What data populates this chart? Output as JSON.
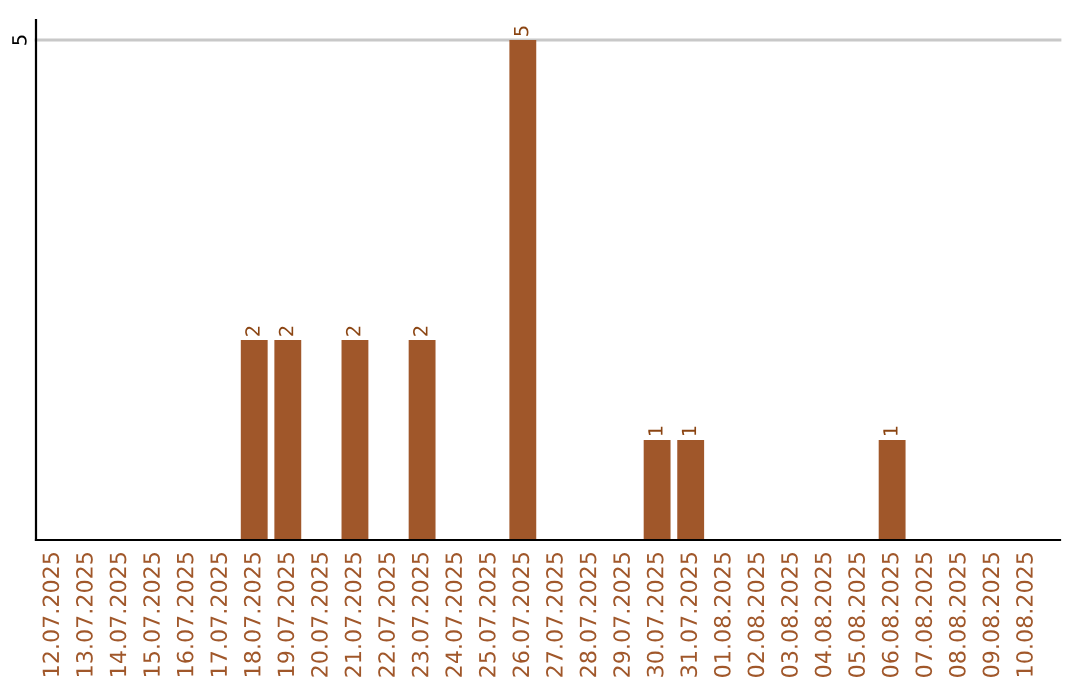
{
  "chart_data": {
    "type": "bar",
    "categories": [
      "12.07.2025",
      "13.07.2025",
      "14.07.2025",
      "15.07.2025",
      "16.07.2025",
      "17.07.2025",
      "18.07.2025",
      "19.07.2025",
      "20.07.2025",
      "21.07.2025",
      "22.07.2025",
      "23.07.2025",
      "24.07.2025",
      "25.07.2025",
      "26.07.2025",
      "27.07.2025",
      "28.07.2025",
      "29.07.2025",
      "30.07.2025",
      "31.07.2025",
      "01.08.2025",
      "02.08.2025",
      "03.08.2025",
      "04.08.2025",
      "05.08.2025",
      "06.08.2025",
      "07.08.2025",
      "08.08.2025",
      "09.08.2025",
      "10.08.2025"
    ],
    "values": [
      0,
      0,
      0,
      0,
      0,
      0,
      2,
      2,
      0,
      2,
      0,
      2,
      0,
      0,
      5,
      0,
      0,
      0,
      1,
      1,
      0,
      0,
      0,
      0,
      0,
      1,
      0,
      0,
      0,
      0
    ],
    "value_labels": [
      null,
      null,
      null,
      null,
      null,
      null,
      "2",
      "2",
      null,
      "2",
      null,
      "2",
      null,
      null,
      "5",
      null,
      null,
      null,
      "1",
      "1",
      null,
      null,
      null,
      null,
      null,
      "1",
      null,
      null,
      null,
      null
    ],
    "color": "#a0572a",
    "ylim": [
      0,
      5.2
    ],
    "yticks": [
      5
    ],
    "grid": "y",
    "legend": false
  }
}
